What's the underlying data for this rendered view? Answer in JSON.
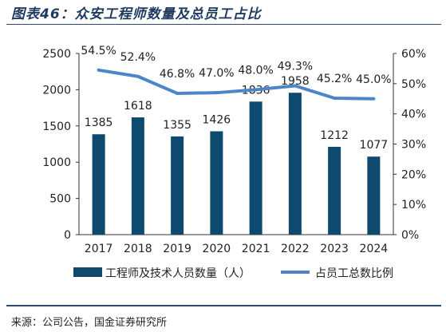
{
  "title": "图表46：众安工程师数量及总员工占比",
  "source": "来源：公司公告，国金证券研究所",
  "chart_data": {
    "type": "bar",
    "categories": [
      "2017",
      "2018",
      "2019",
      "2020",
      "2021",
      "2022",
      "2023",
      "2024"
    ],
    "series": [
      {
        "name": "工程师及技术人员数量（人）",
        "type": "bar",
        "axis": "left",
        "values": [
          1385,
          1618,
          1355,
          1426,
          1836,
          1958,
          1212,
          1077
        ],
        "labels": [
          "1385",
          "1618",
          "1355",
          "1426",
          "1836",
          "1958",
          "1212",
          "1077"
        ],
        "color": "#0d4a6e"
      },
      {
        "name": "占员工总数比例",
        "type": "line",
        "axis": "right",
        "values": [
          54.5,
          52.4,
          46.8,
          47.0,
          48.0,
          49.3,
          45.2,
          45.0
        ],
        "labels": [
          "54.5%",
          "52.4%",
          "46.8%",
          "47.0%",
          "48.0%",
          "49.3%",
          "45.2%",
          "45.0%"
        ],
        "color": "#4a86c8"
      }
    ],
    "ylim_left": [
      0,
      2500
    ],
    "yticks_left": [
      "0",
      "500",
      "1000",
      "1500",
      "2000",
      "2500"
    ],
    "ylim_right": [
      0,
      60
    ],
    "yticks_right": [
      "0%",
      "10%",
      "20%",
      "30%",
      "40%",
      "50%",
      "60%"
    ],
    "legend": "bottom",
    "grid": false
  }
}
